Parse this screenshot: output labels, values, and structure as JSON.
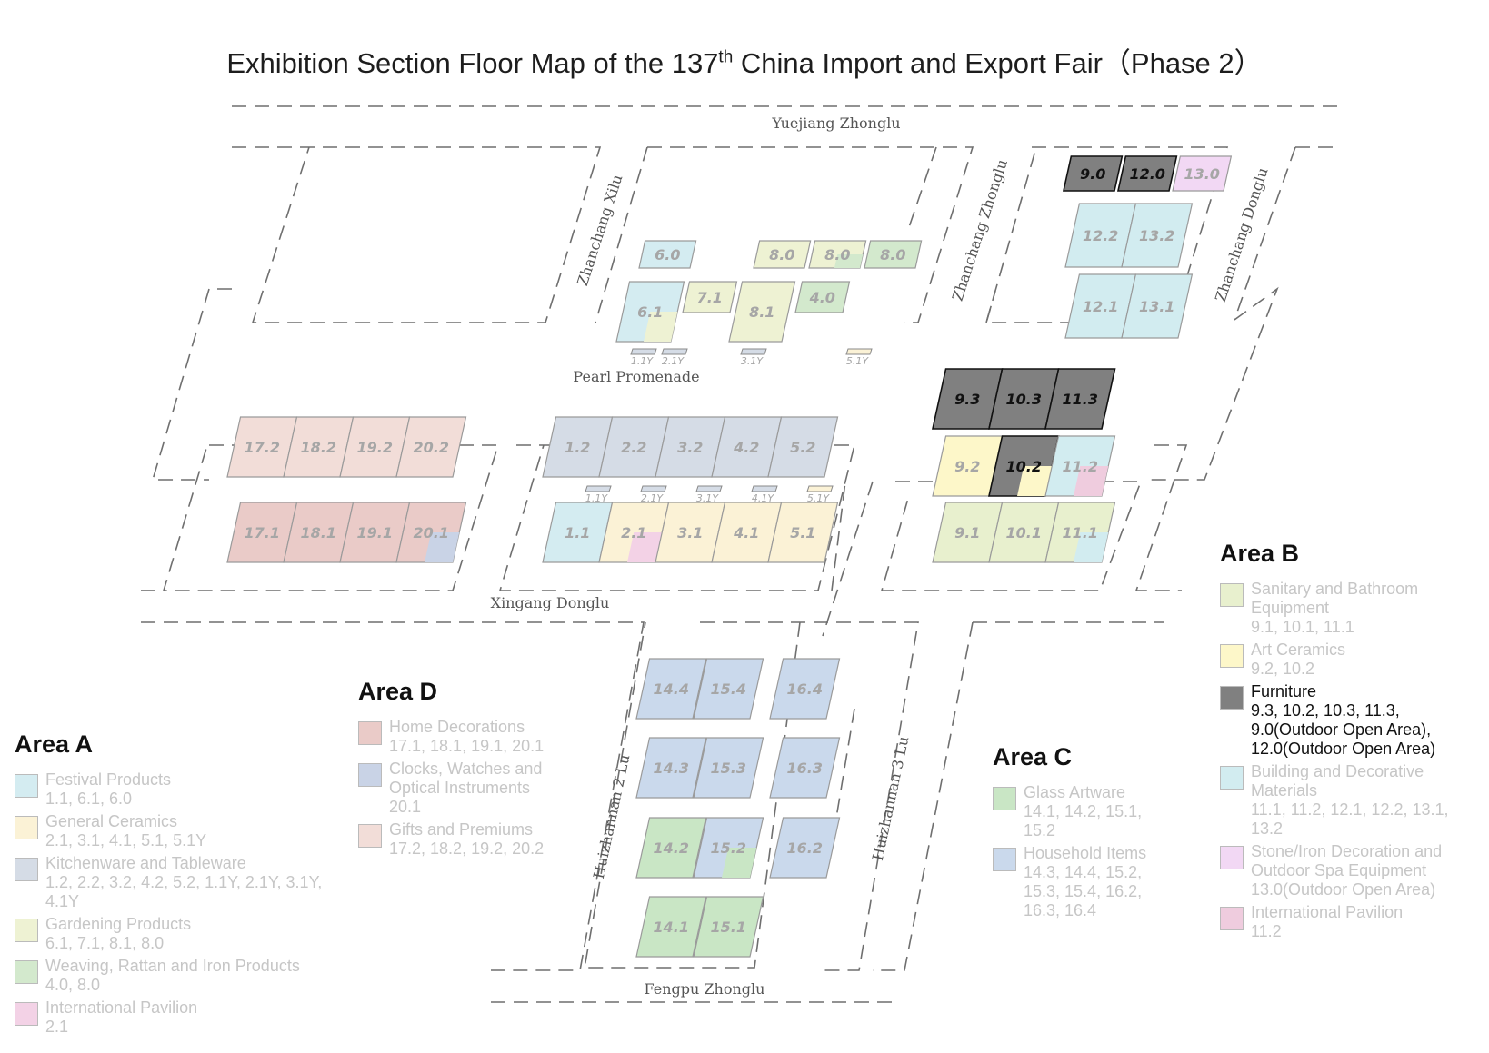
{
  "title": {
    "main": "Exhibition Section Floor Map of the 137",
    "sup": "th",
    "rest": " China Import and Export Fair（Phase 2）"
  },
  "colors": {
    "festival": "#d4ecf1",
    "ceramics": "#fbf2d6",
    "kitchen": "#d5dce6",
    "gardening": "#eef2d3",
    "weaving": "#d3e9cd",
    "intl": "#f3d2e6",
    "home": "#eacbc8",
    "clocks": "#c9d3e6",
    "gifts": "#f2ddd8",
    "glass": "#c9e6c5",
    "household": "#cad9ec",
    "sanitary": "#e8f0ce",
    "art": "#fdf7c9",
    "furniture": "#808080",
    "building": "#d2ecf0",
    "stone": "#f2d8f4",
    "intlB": "#efccde"
  },
  "roads": {
    "yuejiang": "Yuejiang Zhonglu",
    "xilu": "Zhanchang Xilu",
    "zhonglu": "Zhanchang Zhonglu",
    "donglu": "Zhanchang Donglu",
    "pearl": "Pearl Promenade",
    "xingang": "Xingang Donglu",
    "hui2": "Huizhannan 2 Lu",
    "hui3": "Huizhannan 3 Lu",
    "fengpu": "Fengpu Zhonglu"
  },
  "halls": [
    {
      "label": "6.0",
      "fill": "festival"
    },
    {
      "label": "8.0",
      "fill": "gardening"
    },
    {
      "label": "8.0",
      "fill": "gardening",
      "split": "weaving"
    },
    {
      "label": "8.0",
      "fill": "weaving"
    },
    {
      "label": "6.1",
      "fill": "festival",
      "split": "gardening"
    },
    {
      "label": "7.1",
      "fill": "gardening"
    },
    {
      "label": "8.1",
      "fill": "gardening"
    },
    {
      "label": "4.0",
      "fill": "weaving"
    },
    {
      "label": "9.0",
      "fill": "furniture",
      "dark": true
    },
    {
      "label": "12.0",
      "fill": "furniture",
      "dark": true
    },
    {
      "label": "13.0",
      "fill": "stone"
    },
    {
      "label": "12.2",
      "fill": "building"
    },
    {
      "label": "13.2",
      "fill": "building"
    },
    {
      "label": "12.1",
      "fill": "building"
    },
    {
      "label": "13.1",
      "fill": "building"
    },
    {
      "label": "17.2",
      "fill": "gifts"
    },
    {
      "label": "18.2",
      "fill": "gifts"
    },
    {
      "label": "19.2",
      "fill": "gifts"
    },
    {
      "label": "20.2",
      "fill": "gifts"
    },
    {
      "label": "17.1",
      "fill": "home"
    },
    {
      "label": "18.1",
      "fill": "home"
    },
    {
      "label": "19.1",
      "fill": "home"
    },
    {
      "label": "20.1",
      "fill": "home",
      "split": "clocks"
    },
    {
      "label": "1.2",
      "fill": "kitchen"
    },
    {
      "label": "2.2",
      "fill": "kitchen"
    },
    {
      "label": "3.2",
      "fill": "kitchen"
    },
    {
      "label": "4.2",
      "fill": "kitchen"
    },
    {
      "label": "5.2",
      "fill": "kitchen"
    },
    {
      "label": "1.1",
      "fill": "festival"
    },
    {
      "label": "2.1",
      "fill": "ceramics",
      "split": "intl"
    },
    {
      "label": "3.1",
      "fill": "ceramics"
    },
    {
      "label": "4.1",
      "fill": "ceramics"
    },
    {
      "label": "5.1",
      "fill": "ceramics"
    },
    {
      "label": "9.3",
      "fill": "furniture",
      "dark": true
    },
    {
      "label": "10.3",
      "fill": "furniture",
      "dark": true
    },
    {
      "label": "11.3",
      "fill": "furniture",
      "dark": true
    },
    {
      "label": "9.2",
      "fill": "art"
    },
    {
      "label": "10.2",
      "fill": "furniture",
      "split": "art",
      "dark": true
    },
    {
      "label": "11.2",
      "fill": "building",
      "split": "intlB"
    },
    {
      "label": "9.1",
      "fill": "sanitary"
    },
    {
      "label": "10.1",
      "fill": "sanitary"
    },
    {
      "label": "11.1",
      "fill": "sanitary",
      "split": "building"
    },
    {
      "label": "14.4",
      "fill": "household"
    },
    {
      "label": "15.4",
      "fill": "household"
    },
    {
      "label": "16.4",
      "fill": "household"
    },
    {
      "label": "14.3",
      "fill": "household"
    },
    {
      "label": "15.3",
      "fill": "household"
    },
    {
      "label": "16.3",
      "fill": "household"
    },
    {
      "label": "14.2",
      "fill": "glass"
    },
    {
      "label": "15.2",
      "fill": "household",
      "split": "glass"
    },
    {
      "label": "16.2",
      "fill": "household"
    },
    {
      "label": "14.1",
      "fill": "glass"
    },
    {
      "label": "15.1",
      "fill": "glass"
    }
  ],
  "ystrips": [
    {
      "label": "1.1Y",
      "fill": "kitchen"
    },
    {
      "label": "2.1Y",
      "fill": "kitchen"
    },
    {
      "label": "3.1Y",
      "fill": "kitchen"
    },
    {
      "label": "5.1Y",
      "fill": "ceramics"
    },
    {
      "label": "1.1Y",
      "fill": "kitchen"
    },
    {
      "label": "2.1Y",
      "fill": "kitchen"
    },
    {
      "label": "3.1Y",
      "fill": "kitchen"
    },
    {
      "label": "4.1Y",
      "fill": "kitchen"
    },
    {
      "label": "5.1Y",
      "fill": "ceramics"
    }
  ],
  "areaA": {
    "heading": "Area A",
    "items": [
      {
        "fill": "festival",
        "name": "Festival Products",
        "halls": [
          "1.1, 6.1, 6.0"
        ]
      },
      {
        "fill": "ceramics",
        "name": "General Ceramics",
        "halls": [
          "2.1, 3.1, 4.1, 5.1, 5.1Y"
        ]
      },
      {
        "fill": "kitchen",
        "name": "Kitchenware and Tableware",
        "halls": [
          "1.2, 2.2, 3.2, 4.2, 5.2, 1.1Y, 2.1Y, 3.1Y,",
          "4.1Y"
        ]
      },
      {
        "fill": "gardening",
        "name": "Gardening Products",
        "halls": [
          "6.1, 7.1, 8.1, 8.0"
        ]
      },
      {
        "fill": "weaving",
        "name": "Weaving, Rattan and Iron Products",
        "halls": [
          "4.0, 8.0"
        ]
      },
      {
        "fill": "intl",
        "name": "International Pavilion",
        "halls": [
          "2.1"
        ]
      }
    ]
  },
  "areaD": {
    "heading": "Area D",
    "items": [
      {
        "fill": "home",
        "name": "Home Decorations",
        "halls": [
          "17.1, 18.1, 19.1, 20.1"
        ]
      },
      {
        "fill": "clocks",
        "name": "Clocks, Watches and",
        "halls": [
          "Optical Instruments",
          "20.1"
        ]
      },
      {
        "fill": "gifts",
        "name": "Gifts and Premiums",
        "halls": [
          "17.2, 18.2, 19.2, 20.2"
        ]
      }
    ]
  },
  "areaC": {
    "heading": "Area C",
    "items": [
      {
        "fill": "glass",
        "name": "Glass Artware",
        "halls": [
          "14.1, 14.2, 15.1,",
          "15.2"
        ]
      },
      {
        "fill": "household",
        "name": "Household Items",
        "halls": [
          "14.3, 14.4, 15.2,",
          "15.3, 15.4, 16.2,",
          "16.3, 16.4"
        ]
      }
    ]
  },
  "areaB": {
    "heading": "Area B",
    "items": [
      {
        "fill": "sanitary",
        "name": "Sanitary and Bathroom",
        "halls": [
          "Equipment",
          "9.1, 10.1, 11.1"
        ]
      },
      {
        "fill": "art",
        "name": "Art Ceramics",
        "halls": [
          "9.2, 10.2"
        ]
      },
      {
        "fill": "furniture",
        "name": "Furniture",
        "halls": [
          "9.3, 10.2, 10.3, 11.3,",
          "9.0(Outdoor Open Area),",
          "12.0(Outdoor Open Area)"
        ],
        "dark": true
      },
      {
        "fill": "building",
        "name": "Building and Decorative",
        "halls": [
          "Materials",
          "11.1, 11.2, 12.1, 12.2, 13.1,",
          "13.2"
        ]
      },
      {
        "fill": "stone",
        "name": "Stone/Iron Decoration and",
        "halls": [
          "Outdoor Spa Equipment",
          "13.0(Outdoor Open Area)"
        ]
      },
      {
        "fill": "intlB",
        "name": "International Pavilion",
        "halls": [
          "11.2"
        ]
      }
    ]
  }
}
